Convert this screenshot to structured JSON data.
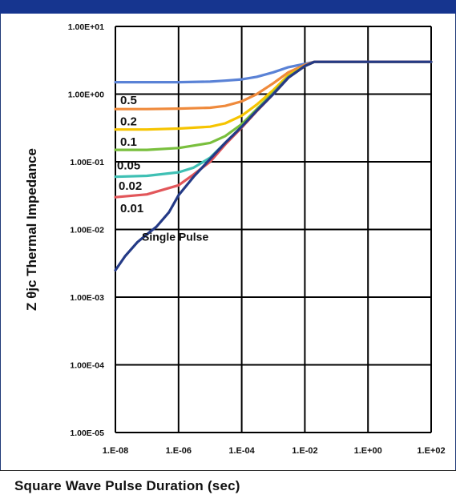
{
  "colors": {
    "header": "#16358f",
    "0.5": "#ef8a3c",
    "0.2": "#f6c400",
    "0.1": "#79bf3d",
    "0.05": "#3fc0b4",
    "0.02": "#e2565a",
    "0.01": "#5a82d6",
    "Single Pulse": "#243a86"
  },
  "chart_data": {
    "type": "line",
    "xlabel": "Square Wave Pulse Duration (sec)",
    "ylabel": "Z θjc Thermal Impedance",
    "xscale": "log",
    "yscale": "log",
    "xlim": [
      1e-08,
      100
    ],
    "ylim": [
      1e-05,
      10
    ],
    "x_tick_labels": [
      "1.E-08",
      "1.E-06",
      "1.E-04",
      "1.E-02",
      "1.E+00",
      "1.E+02"
    ],
    "y_tick_labels": [
      "1.00E-05",
      "1.00E-04",
      "1.00E-03",
      "1.00E-02",
      "1.00E-01",
      "1.00E+00",
      "1.00E+01"
    ],
    "grid": true,
    "series": [
      {
        "name": "0.01",
        "x": [
          1e-08,
          1e-07,
          1e-06,
          1e-05,
          3e-05,
          0.0001,
          0.0003,
          0.001,
          0.003,
          0.01,
          0.02,
          0.03,
          100
        ],
        "y": [
          1.5,
          1.5,
          1.5,
          1.53,
          1.58,
          1.65,
          1.8,
          2.1,
          2.5,
          2.8,
          3.0,
          3.0,
          3.0
        ]
      },
      {
        "name": "0.5",
        "x": [
          1e-08,
          1e-07,
          1e-06,
          1e-05,
          3e-05,
          0.0001,
          0.0003,
          0.001,
          0.003,
          0.01,
          0.02,
          0.03,
          100
        ],
        "y": [
          0.6,
          0.6,
          0.61,
          0.63,
          0.67,
          0.78,
          1.0,
          1.45,
          2.1,
          2.7,
          3.0,
          3.0,
          3.0
        ]
      },
      {
        "name": "0.2",
        "x": [
          1e-08,
          1e-07,
          1e-06,
          1e-05,
          3e-05,
          0.0001,
          0.0003,
          0.001,
          0.003,
          0.01,
          0.02,
          0.03,
          100
        ],
        "y": [
          0.3,
          0.3,
          0.31,
          0.33,
          0.37,
          0.48,
          0.7,
          1.15,
          1.9,
          2.6,
          3.0,
          3.0,
          3.0
        ]
      },
      {
        "name": "0.1",
        "x": [
          1e-08,
          1e-07,
          1e-06,
          1e-05,
          3e-05,
          0.0001,
          0.0003,
          0.001,
          0.003,
          0.01,
          0.02,
          0.03,
          100
        ],
        "y": [
          0.15,
          0.15,
          0.16,
          0.19,
          0.24,
          0.36,
          0.6,
          1.05,
          1.8,
          2.6,
          3.0,
          3.0,
          3.0
        ]
      },
      {
        "name": "0.05",
        "x": [
          1e-08,
          1e-07,
          1e-06,
          3e-06,
          1e-05,
          3e-05,
          0.0001,
          0.0003,
          0.001,
          0.003,
          0.01,
          0.02,
          0.03,
          100
        ],
        "y": [
          0.06,
          0.062,
          0.07,
          0.082,
          0.115,
          0.19,
          0.33,
          0.57,
          1.0,
          1.75,
          2.6,
          3.0,
          3.0,
          3.0
        ]
      },
      {
        "name": "0.02",
        "x": [
          1e-08,
          1e-07,
          1e-06,
          3e-06,
          1e-05,
          3e-05,
          0.0001,
          0.0003,
          0.001,
          0.003,
          0.01,
          0.02,
          0.03,
          100
        ],
        "y": [
          0.03,
          0.033,
          0.045,
          0.065,
          0.1,
          0.18,
          0.32,
          0.56,
          1.0,
          1.75,
          2.6,
          3.0,
          3.0,
          3.0
        ]
      },
      {
        "name": "Single Pulse",
        "x": [
          1e-08,
          2e-08,
          5e-08,
          1e-07,
          2e-07,
          5e-07,
          1e-06,
          3e-06,
          1e-05,
          3e-05,
          0.0001,
          0.0003,
          0.001,
          0.003,
          0.01,
          0.02,
          0.03,
          100
        ],
        "y": [
          0.0025,
          0.004,
          0.0065,
          0.0085,
          0.011,
          0.018,
          0.032,
          0.06,
          0.11,
          0.19,
          0.33,
          0.57,
          1.0,
          1.75,
          2.6,
          3.0,
          3.0,
          3.0
        ]
      }
    ],
    "annotations": [
      "0.5",
      "0.2",
      "0.1",
      "0.05",
      "0.02",
      "0.01",
      "Single Pulse"
    ]
  }
}
